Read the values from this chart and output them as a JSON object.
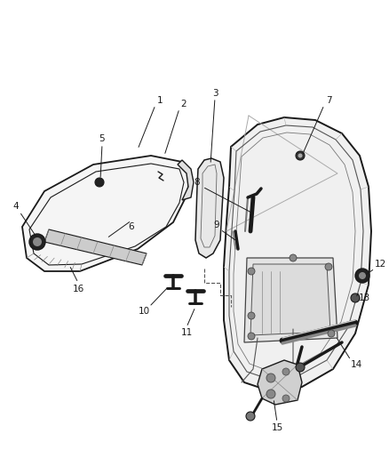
{
  "background_color": "#ffffff",
  "fig_width": 4.38,
  "fig_height": 5.33,
  "dpi": 100,
  "label_fontsize": 7.5,
  "line_color": "#1a1a1a",
  "hatch_color": "#555555"
}
